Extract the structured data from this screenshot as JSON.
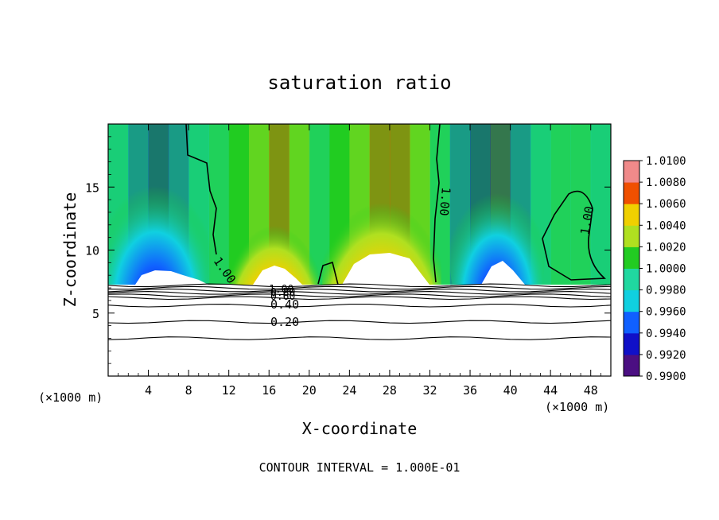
{
  "chart_data": {
    "type": "heatmap",
    "title": "saturation ratio",
    "xlabel": "X-coordinate",
    "ylabel": "Z-coordinate",
    "x_unit_label_left": "(×1000 m)",
    "x_unit_label_right": "(×1000 m)",
    "footer": "CONTOUR INTERVAL = 1.000E-01",
    "xlim": [
      0,
      50
    ],
    "ylim": [
      0,
      20
    ],
    "x_ticks": [
      4,
      8,
      12,
      16,
      20,
      24,
      28,
      32,
      36,
      40,
      44,
      48
    ],
    "y_ticks": [
      5,
      10,
      15
    ],
    "colorbar": {
      "levels": [
        "0.9900",
        "0.9920",
        "0.9940",
        "0.9960",
        "0.9980",
        "1.0000",
        "1.0020",
        "1.0040",
        "1.0060",
        "1.0080",
        "1.0100"
      ],
      "colors": [
        "#4b0f82",
        "#1010c8",
        "#1060ff",
        "#10d0e0",
        "#20d8a0",
        "#22cc22",
        "#b0e020",
        "#f0d000",
        "#f05000",
        "#e01010",
        "#f08a8a"
      ]
    },
    "contour_labels": [
      "1.00",
      "1.00",
      "1.00",
      "1.00",
      "0.80",
      "0.60",
      "0.40",
      "0.20"
    ],
    "lower_contour_levels_km": [
      7.2,
      7.0,
      6.8,
      6.6,
      6.4,
      6.2,
      5.6,
      4.3,
      3.0
    ],
    "bands": [
      {
        "x": 1,
        "value": 0.9975
      },
      {
        "x": 3,
        "value": 0.9955
      },
      {
        "x": 5,
        "value": 0.9925
      },
      {
        "x": 7,
        "value": 0.9945
      },
      {
        "x": 9,
        "value": 0.9975
      },
      {
        "x": 11,
        "value": 0.9995
      },
      {
        "x": 13,
        "value": 1.0005
      },
      {
        "x": 15,
        "value": 1.004
      },
      {
        "x": 17,
        "value": 1.0075
      },
      {
        "x": 19,
        "value": 1.0035
      },
      {
        "x": 21,
        "value": 1.0
      },
      {
        "x": 23,
        "value": 1.001
      },
      {
        "x": 25,
        "value": 1.0035
      },
      {
        "x": 27,
        "value": 1.007
      },
      {
        "x": 29,
        "value": 1.007
      },
      {
        "x": 31,
        "value": 1.003
      },
      {
        "x": 33,
        "value": 0.9995
      },
      {
        "x": 35,
        "value": 0.996
      },
      {
        "x": 37,
        "value": 0.9935
      },
      {
        "x": 39,
        "value": 0.992
      },
      {
        "x": 41,
        "value": 0.995
      },
      {
        "x": 43,
        "value": 0.9975
      },
      {
        "x": 45,
        "value": 0.9995
      },
      {
        "x": 47,
        "value": 0.9985
      },
      {
        "x": 49,
        "value": 0.9975
      }
    ]
  }
}
